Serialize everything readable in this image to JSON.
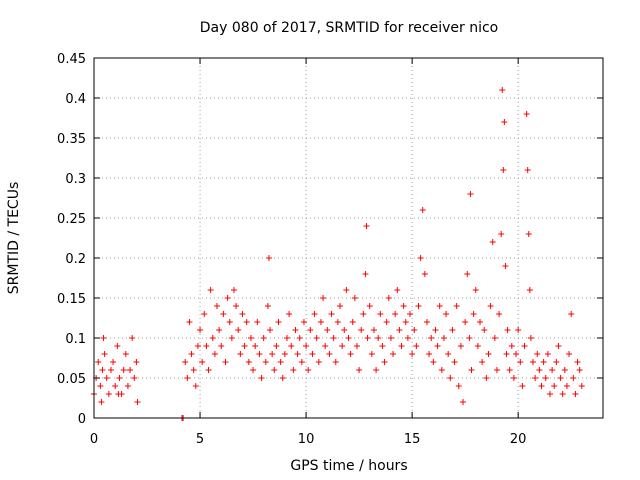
{
  "chart_data": {
    "type": "scatter",
    "title": "Day 080 of 2017, SRMTID for receiver nico",
    "xlabel": "GPS time / hours",
    "ylabel": "SRMTID / TECUs",
    "xlim": [
      0,
      24
    ],
    "ylim": [
      0,
      0.45
    ],
    "xticks": [
      0,
      5,
      10,
      15,
      20
    ],
    "xtick_labels": [
      "0",
      "5",
      "10",
      "15",
      "20"
    ],
    "yticks": [
      0,
      0.05,
      0.1,
      0.15,
      0.2,
      0.25,
      0.3,
      0.35,
      0.4,
      0.45
    ],
    "ytick_labels": [
      "0",
      "0.05",
      "0.1",
      "0.15",
      "0.2",
      "0.25",
      "0.3",
      "0.35",
      "0.4",
      "0.45"
    ],
    "grid": true,
    "marker": "+",
    "color": "#ff0000",
    "series": [
      {
        "name": "SRMTID",
        "points": [
          [
            0.0,
            0.03
          ],
          [
            0.1,
            0.05
          ],
          [
            0.2,
            0.07
          ],
          [
            0.3,
            0.04
          ],
          [
            0.4,
            0.06
          ],
          [
            0.45,
            0.1
          ],
          [
            0.5,
            0.08
          ],
          [
            0.6,
            0.05
          ],
          [
            0.7,
            0.03
          ],
          [
            0.8,
            0.06
          ],
          [
            0.9,
            0.07
          ],
          [
            1.0,
            0.04
          ],
          [
            1.1,
            0.09
          ],
          [
            1.2,
            0.05
          ],
          [
            1.3,
            0.03
          ],
          [
            1.4,
            0.06
          ],
          [
            1.5,
            0.08
          ],
          [
            1.6,
            0.04
          ],
          [
            1.7,
            0.06
          ],
          [
            1.8,
            0.1
          ],
          [
            1.9,
            0.05
          ],
          [
            2.0,
            0.07
          ],
          [
            2.05,
            0.02
          ],
          [
            0.35,
            0.02
          ],
          [
            1.15,
            0.03
          ],
          [
            4.15,
            0.0
          ],
          [
            4.2,
            0.0
          ],
          [
            4.3,
            0.07
          ],
          [
            4.4,
            0.05
          ],
          [
            4.5,
            0.12
          ],
          [
            4.6,
            0.08
          ],
          [
            4.7,
            0.06
          ],
          [
            4.8,
            0.04
          ],
          [
            4.9,
            0.09
          ],
          [
            5.0,
            0.11
          ],
          [
            5.1,
            0.07
          ],
          [
            5.2,
            0.13
          ],
          [
            5.3,
            0.09
          ],
          [
            5.4,
            0.06
          ],
          [
            5.5,
            0.16
          ],
          [
            5.6,
            0.1
          ],
          [
            5.7,
            0.08
          ],
          [
            5.8,
            0.14
          ],
          [
            5.9,
            0.11
          ],
          [
            6.0,
            0.09
          ],
          [
            6.1,
            0.13
          ],
          [
            6.2,
            0.07
          ],
          [
            6.3,
            0.15
          ],
          [
            6.4,
            0.12
          ],
          [
            6.5,
            0.1
          ],
          [
            6.6,
            0.16
          ],
          [
            6.7,
            0.14
          ],
          [
            6.8,
            0.11
          ],
          [
            6.9,
            0.08
          ],
          [
            7.0,
            0.13
          ],
          [
            7.1,
            0.09
          ],
          [
            7.2,
            0.12
          ],
          [
            7.3,
            0.07
          ],
          [
            7.4,
            0.1
          ],
          [
            7.5,
            0.06
          ],
          [
            7.6,
            0.09
          ],
          [
            7.7,
            0.12
          ],
          [
            7.8,
            0.08
          ],
          [
            7.9,
            0.05
          ],
          [
            8.0,
            0.1
          ],
          [
            8.1,
            0.07
          ],
          [
            8.2,
            0.14
          ],
          [
            8.25,
            0.2
          ],
          [
            8.3,
            0.11
          ],
          [
            8.4,
            0.08
          ],
          [
            8.5,
            0.06
          ],
          [
            8.6,
            0.09
          ],
          [
            8.7,
            0.12
          ],
          [
            8.8,
            0.07
          ],
          [
            8.9,
            0.05
          ],
          [
            9.0,
            0.08
          ],
          [
            9.1,
            0.1
          ],
          [
            9.2,
            0.13
          ],
          [
            9.3,
            0.09
          ],
          [
            9.4,
            0.06
          ],
          [
            9.5,
            0.11
          ],
          [
            9.6,
            0.08
          ],
          [
            9.7,
            0.1
          ],
          [
            9.8,
            0.07
          ],
          [
            9.9,
            0.12
          ],
          [
            10.0,
            0.09
          ],
          [
            10.1,
            0.06
          ],
          [
            10.2,
            0.11
          ],
          [
            10.3,
            0.08
          ],
          [
            10.4,
            0.13
          ],
          [
            10.5,
            0.1
          ],
          [
            10.6,
            0.07
          ],
          [
            10.7,
            0.12
          ],
          [
            10.8,
            0.15
          ],
          [
            10.9,
            0.09
          ],
          [
            11.0,
            0.11
          ],
          [
            11.1,
            0.08
          ],
          [
            11.2,
            0.13
          ],
          [
            11.3,
            0.1
          ],
          [
            11.4,
            0.07
          ],
          [
            11.5,
            0.12
          ],
          [
            11.6,
            0.14
          ],
          [
            11.7,
            0.09
          ],
          [
            11.8,
            0.11
          ],
          [
            11.9,
            0.16
          ],
          [
            12.0,
            0.1
          ],
          [
            12.1,
            0.08
          ],
          [
            12.2,
            0.12
          ],
          [
            12.3,
            0.15
          ],
          [
            12.4,
            0.09
          ],
          [
            12.5,
            0.06
          ],
          [
            12.6,
            0.11
          ],
          [
            12.7,
            0.13
          ],
          [
            12.8,
            0.18
          ],
          [
            12.85,
            0.24
          ],
          [
            12.9,
            0.1
          ],
          [
            13.0,
            0.14
          ],
          [
            13.1,
            0.08
          ],
          [
            13.2,
            0.11
          ],
          [
            13.3,
            0.06
          ],
          [
            13.4,
            0.1
          ],
          [
            13.5,
            0.13
          ],
          [
            13.6,
            0.09
          ],
          [
            13.7,
            0.07
          ],
          [
            13.8,
            0.12
          ],
          [
            13.9,
            0.15
          ],
          [
            14.0,
            0.1
          ],
          [
            14.1,
            0.08
          ],
          [
            14.2,
            0.13
          ],
          [
            14.3,
            0.16
          ],
          [
            14.4,
            0.11
          ],
          [
            14.5,
            0.09
          ],
          [
            14.6,
            0.14
          ],
          [
            14.7,
            0.12
          ],
          [
            14.8,
            0.1
          ],
          [
            14.9,
            0.13
          ],
          [
            15.0,
            0.08
          ],
          [
            15.1,
            0.11
          ],
          [
            15.2,
            0.09
          ],
          [
            15.3,
            0.14
          ],
          [
            15.4,
            0.2
          ],
          [
            15.5,
            0.26
          ],
          [
            15.6,
            0.18
          ],
          [
            15.7,
            0.12
          ],
          [
            15.8,
            0.08
          ],
          [
            15.9,
            0.1
          ],
          [
            16.0,
            0.07
          ],
          [
            16.1,
            0.11
          ],
          [
            16.2,
            0.09
          ],
          [
            16.3,
            0.14
          ],
          [
            16.4,
            0.06
          ],
          [
            16.5,
            0.1
          ],
          [
            16.6,
            0.13
          ],
          [
            16.7,
            0.08
          ],
          [
            16.8,
            0.05
          ],
          [
            16.9,
            0.11
          ],
          [
            17.0,
            0.07
          ],
          [
            17.1,
            0.14
          ],
          [
            17.2,
            0.04
          ],
          [
            17.3,
            0.09
          ],
          [
            17.4,
            0.02
          ],
          [
            17.5,
            0.12
          ],
          [
            17.6,
            0.18
          ],
          [
            17.7,
            0.1
          ],
          [
            17.75,
            0.28
          ],
          [
            17.8,
            0.06
          ],
          [
            17.9,
            0.13
          ],
          [
            18.0,
            0.16
          ],
          [
            18.1,
            0.09
          ],
          [
            18.2,
            0.12
          ],
          [
            18.3,
            0.07
          ],
          [
            18.4,
            0.11
          ],
          [
            18.5,
            0.05
          ],
          [
            18.6,
            0.08
          ],
          [
            18.7,
            0.14
          ],
          [
            18.8,
            0.22
          ],
          [
            18.9,
            0.1
          ],
          [
            19.0,
            0.06
          ],
          [
            19.1,
            0.13
          ],
          [
            19.2,
            0.23
          ],
          [
            19.25,
            0.41
          ],
          [
            19.3,
            0.31
          ],
          [
            19.35,
            0.37
          ],
          [
            19.4,
            0.19
          ],
          [
            19.45,
            0.08
          ],
          [
            19.5,
            0.11
          ],
          [
            19.6,
            0.06
          ],
          [
            19.7,
            0.09
          ],
          [
            19.8,
            0.05
          ],
          [
            19.9,
            0.08
          ],
          [
            20.0,
            0.11
          ],
          [
            20.1,
            0.07
          ],
          [
            20.2,
            0.04
          ],
          [
            20.3,
            0.09
          ],
          [
            20.4,
            0.38
          ],
          [
            20.45,
            0.31
          ],
          [
            20.5,
            0.23
          ],
          [
            20.55,
            0.16
          ],
          [
            20.6,
            0.1
          ],
          [
            20.7,
            0.07
          ],
          [
            20.8,
            0.05
          ],
          [
            20.9,
            0.08
          ],
          [
            21.0,
            0.06
          ],
          [
            21.1,
            0.04
          ],
          [
            21.2,
            0.07
          ],
          [
            21.3,
            0.05
          ],
          [
            21.4,
            0.08
          ],
          [
            21.5,
            0.03
          ],
          [
            21.6,
            0.06
          ],
          [
            21.7,
            0.04
          ],
          [
            21.8,
            0.07
          ],
          [
            21.9,
            0.09
          ],
          [
            22.0,
            0.05
          ],
          [
            22.1,
            0.03
          ],
          [
            22.2,
            0.06
          ],
          [
            22.3,
            0.04
          ],
          [
            22.4,
            0.08
          ],
          [
            22.5,
            0.13
          ],
          [
            22.6,
            0.05
          ],
          [
            22.7,
            0.03
          ],
          [
            22.8,
            0.07
          ],
          [
            22.9,
            0.06
          ],
          [
            23.0,
            0.04
          ]
        ]
      }
    ]
  }
}
